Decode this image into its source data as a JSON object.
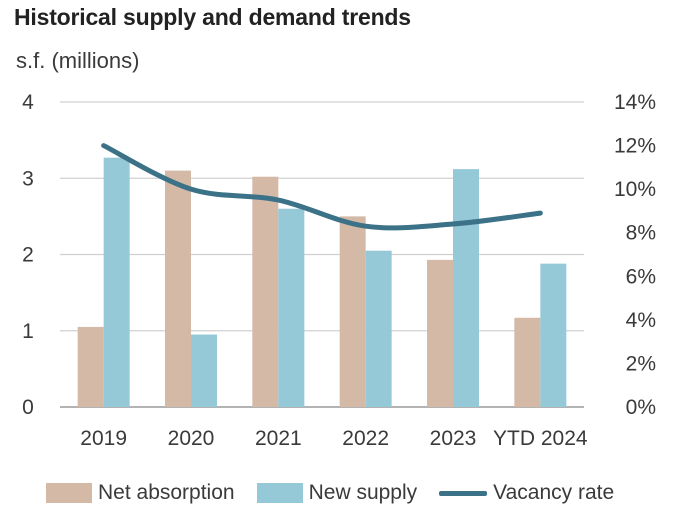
{
  "chart_data": {
    "type": "bar",
    "title": "Historical supply and demand trends",
    "ylabel": "s.f. (millions)",
    "categories": [
      "2019",
      "2020",
      "2021",
      "2022",
      "2023",
      "YTD 2024"
    ],
    "ylim": [
      0,
      4
    ],
    "y_ticks": [
      "0",
      "1",
      "2",
      "3",
      "4"
    ],
    "y2lim": [
      0,
      14
    ],
    "y2_ticks": [
      "0%",
      "2%",
      "4%",
      "6%",
      "8%",
      "10%",
      "12%",
      "14%"
    ],
    "grid": true,
    "legend_position": "bottom",
    "series": [
      {
        "name": "Net absorption",
        "type": "bar",
        "color": "#d4b9a7",
        "values": [
          1.05,
          3.1,
          3.02,
          2.5,
          1.93,
          1.17
        ]
      },
      {
        "name": "New supply",
        "type": "bar",
        "color": "#95c9d8",
        "values": [
          3.27,
          0.95,
          2.6,
          2.05,
          3.12,
          1.88
        ]
      },
      {
        "name": "Vacancy rate",
        "type": "line",
        "axis": "right",
        "color": "#3c7287",
        "values": [
          12.0,
          10.0,
          9.5,
          8.3,
          8.4,
          8.9
        ]
      }
    ]
  }
}
